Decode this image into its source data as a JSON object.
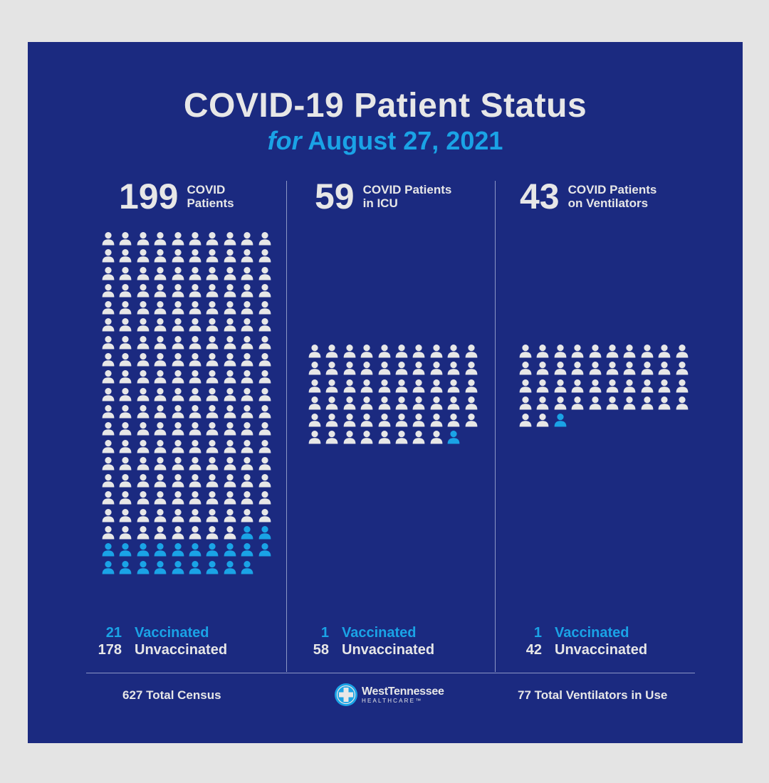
{
  "title": "COVID-19 Patient Status",
  "subtitle": {
    "prefix": "for",
    "date": "August 27, 2021"
  },
  "colors": {
    "background": "#1b2a80",
    "unvaccinated": "#e7e7e7",
    "vaccinated": "#1aa3e6"
  },
  "columns": [
    {
      "total": "199",
      "label_line1": "COVID",
      "label_line2": "Patients",
      "unvaccinated_count": 178,
      "vaccinated_count": 21,
      "vaccinated_num": "21",
      "vaccinated_label": "Vaccinated",
      "unvaccinated_num": "178",
      "unvaccinated_label": "Unvaccinated"
    },
    {
      "total": "59",
      "label_line1": "COVID Patients",
      "label_line2": "in ICU",
      "unvaccinated_count": 58,
      "vaccinated_count": 1,
      "vaccinated_num": "1",
      "vaccinated_label": "Vaccinated",
      "unvaccinated_num": "58",
      "unvaccinated_label": "Unvaccinated"
    },
    {
      "total": "43",
      "label_line1": "COVID Patients",
      "label_line2": "on Ventilators",
      "unvaccinated_count": 42,
      "vaccinated_count": 1,
      "vaccinated_num": "1",
      "vaccinated_label": "Vaccinated",
      "unvaccinated_num": "42",
      "unvaccinated_label": "Unvaccinated"
    }
  ],
  "footer": {
    "census": "627 Total Census",
    "ventilators": "77 Total Ventilators in Use",
    "logo_name": "WestTennessee",
    "logo_sub": "HEALTHCARE™"
  }
}
